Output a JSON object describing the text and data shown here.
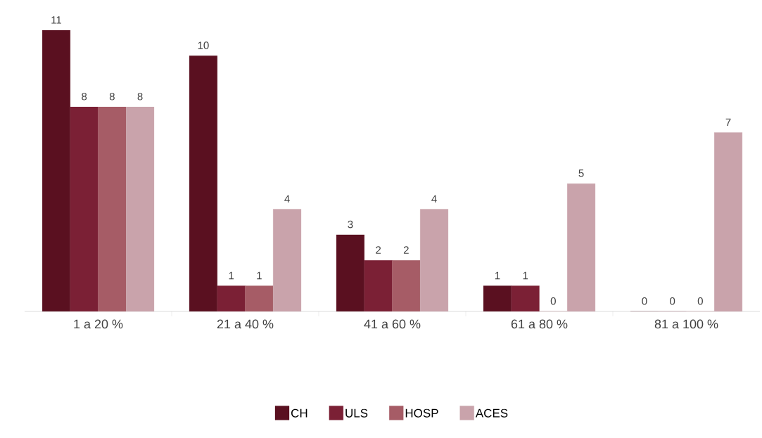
{
  "chart_data": {
    "type": "bar",
    "categories": [
      "1 a 20 %",
      "21 a 40 %",
      "41 a 60 %",
      "61 a 80 %",
      "81 a 100 %"
    ],
    "series": [
      {
        "name": "CH",
        "color": "#5a1020",
        "values": [
          11,
          10,
          3,
          1,
          0
        ]
      },
      {
        "name": "ULS",
        "color": "#7b2035",
        "values": [
          8,
          1,
          2,
          1,
          0
        ]
      },
      {
        "name": "HOSP",
        "color": "#a65c66",
        "values": [
          8,
          1,
          2,
          0,
          0
        ]
      },
      {
        "name": "ACES",
        "color": "#c9a3ab",
        "values": [
          8,
          4,
          4,
          5,
          7
        ]
      }
    ],
    "data_labels": true,
    "legend": "bottom"
  }
}
